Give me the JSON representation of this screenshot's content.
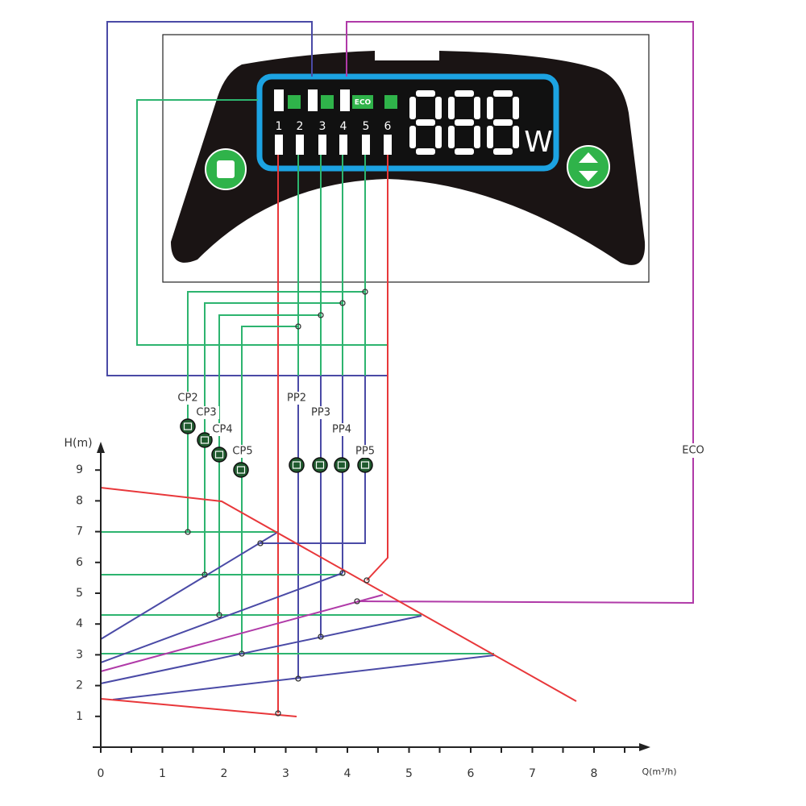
{
  "panel": {
    "mode_numbers": [
      "1",
      "2",
      "3",
      "4",
      "5",
      "6"
    ],
    "eco_icon": "ECO",
    "unit": "W"
  },
  "modes": {
    "cp": [
      "CP2",
      "CP3",
      "CP4",
      "CP5"
    ],
    "pp": [
      "PP2",
      "PP3",
      "PP4",
      "PP5"
    ]
  },
  "eco_label": "ECO",
  "chart": {
    "y_label": "H(m)",
    "x_label": "Q(m³/h)",
    "yticks": [
      1,
      2,
      3,
      4,
      5,
      6,
      7,
      8,
      9
    ],
    "xticks": [
      0,
      1,
      2,
      3,
      4,
      5,
      6,
      7,
      8
    ]
  }
}
